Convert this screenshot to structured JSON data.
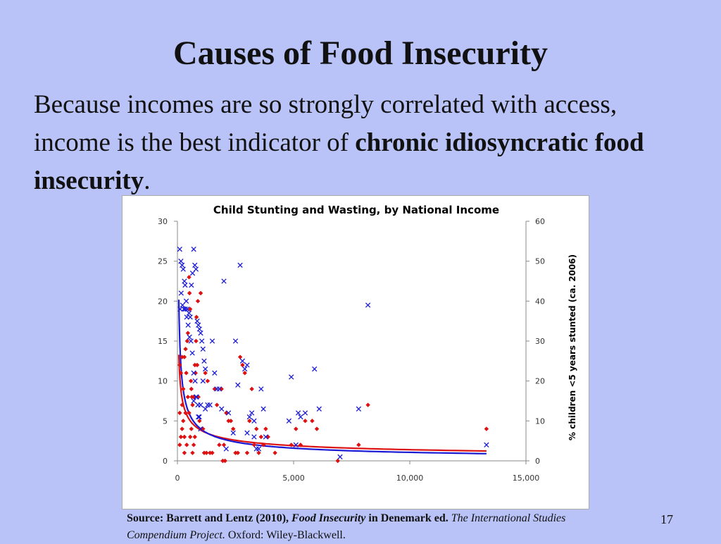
{
  "slide": {
    "title": "Causes of Food Insecurity",
    "body_pre": "Because incomes are so strongly correlated with access, income is the best indicator of ",
    "body_bold": "chronic idiosyncratic food insecurity",
    "body_post": ".",
    "source_prefix": "Source: Barrett and Lentz (2010), ",
    "source_title": "Food Insecurity",
    "source_mid": " in Denemark ed. ",
    "source_book": "The International Studies Compendium Project.",
    "source_suffix": " Oxford: Wiley-Blackwell.",
    "page_number": "17"
  },
  "colors": {
    "background": "#b9c3f7",
    "wasting": "#dd1111",
    "stunting": "#1a1ad6"
  },
  "chart_data": {
    "type": "scatter",
    "title": "Child Stunting and Wasting, by National Income",
    "xlabel": "",
    "ylabel": "",
    "y2label": "% children <5 years stunted (ca. 2006)",
    "xlim": [
      0,
      15000
    ],
    "ylim": [
      0,
      30
    ],
    "y2lim": [
      0,
      60
    ],
    "x_ticks": [
      "0",
      "5,000",
      "10,000",
      "15,000"
    ],
    "y_ticks": [
      "0",
      "5",
      "10",
      "15",
      "20",
      "25",
      "30"
    ],
    "y2_ticks": [
      "0",
      "10",
      "20",
      "30",
      "40",
      "50",
      "60"
    ],
    "grid": false,
    "series": [
      {
        "marker": "diamond",
        "axis": "left",
        "color": "#dd1111",
        "points": [
          [
            100,
            12
          ],
          [
            150,
            11
          ],
          [
            200,
            13
          ],
          [
            250,
            9
          ],
          [
            300,
            13
          ],
          [
            350,
            14
          ],
          [
            380,
            11
          ],
          [
            420,
            15
          ],
          [
            450,
            16
          ],
          [
            500,
            23
          ],
          [
            520,
            21
          ],
          [
            550,
            19
          ],
          [
            580,
            10
          ],
          [
            600,
            9
          ],
          [
            620,
            8
          ],
          [
            650,
            7
          ],
          [
            700,
            8
          ],
          [
            750,
            12
          ],
          [
            780,
            11
          ],
          [
            800,
            15
          ],
          [
            820,
            18
          ],
          [
            850,
            12
          ],
          [
            880,
            20
          ],
          [
            900,
            8
          ],
          [
            950,
            5
          ],
          [
            1000,
            21
          ],
          [
            1050,
            4
          ],
          [
            1100,
            4
          ],
          [
            1150,
            1
          ],
          [
            1200,
            11
          ],
          [
            1250,
            1
          ],
          [
            1300,
            10
          ],
          [
            1400,
            1
          ],
          [
            1500,
            1
          ],
          [
            1600,
            9
          ],
          [
            1700,
            7
          ],
          [
            1800,
            2
          ],
          [
            1900,
            9
          ],
          [
            1950,
            0
          ],
          [
            2000,
            2
          ],
          [
            2050,
            0
          ],
          [
            2100,
            6
          ],
          [
            2200,
            5
          ],
          [
            2300,
            5
          ],
          [
            2400,
            4
          ],
          [
            2500,
            1
          ],
          [
            2600,
            1
          ],
          [
            2700,
            13
          ],
          [
            2800,
            12
          ],
          [
            2900,
            11
          ],
          [
            3000,
            1
          ],
          [
            3100,
            5
          ],
          [
            3200,
            9
          ],
          [
            3300,
            2
          ],
          [
            3400,
            4
          ],
          [
            3500,
            1
          ],
          [
            3600,
            3
          ],
          [
            3700,
            2
          ],
          [
            3800,
            4
          ],
          [
            3900,
            3
          ],
          [
            4200,
            1
          ],
          [
            4900,
            2
          ],
          [
            5100,
            4
          ],
          [
            5300,
            2
          ],
          [
            5500,
            5
          ],
          [
            5800,
            5
          ],
          [
            6000,
            4
          ],
          [
            6900,
            0
          ],
          [
            7800,
            2
          ],
          [
            8200,
            7
          ],
          [
            13300,
            4
          ],
          [
            100,
            6
          ],
          [
            150,
            3
          ],
          [
            200,
            4
          ],
          [
            250,
            5
          ],
          [
            300,
            3
          ],
          [
            350,
            6
          ],
          [
            400,
            2
          ],
          [
            450,
            8
          ],
          [
            500,
            6
          ],
          [
            550,
            3
          ],
          [
            600,
            4
          ],
          [
            650,
            1
          ],
          [
            700,
            2
          ],
          [
            750,
            3
          ],
          [
            100,
            2
          ],
          [
            200,
            7
          ],
          [
            300,
            1
          ]
        ],
        "fit": {
          "type": "power",
          "a": 80.5,
          "b": -0.44,
          "x_from": 60,
          "x_to": 13300
        }
      },
      {
        "marker": "x",
        "axis": "right",
        "color": "#1a1ad6",
        "points": [
          [
            100,
            53
          ],
          [
            150,
            50
          ],
          [
            200,
            49
          ],
          [
            250,
            48
          ],
          [
            300,
            45
          ],
          [
            330,
            44
          ],
          [
            380,
            40
          ],
          [
            420,
            38
          ],
          [
            500,
            37
          ],
          [
            550,
            36
          ],
          [
            600,
            44
          ],
          [
            650,
            47
          ],
          [
            700,
            53
          ],
          [
            750,
            49
          ],
          [
            800,
            48
          ],
          [
            850,
            35
          ],
          [
            900,
            34
          ],
          [
            950,
            33
          ],
          [
            1000,
            32
          ],
          [
            1050,
            30
          ],
          [
            1100,
            28
          ],
          [
            1150,
            25
          ],
          [
            1200,
            23
          ],
          [
            1300,
            14
          ],
          [
            1400,
            14
          ],
          [
            1500,
            30
          ],
          [
            1600,
            22
          ],
          [
            1700,
            18
          ],
          [
            1800,
            18
          ],
          [
            1900,
            13
          ],
          [
            2000,
            45
          ],
          [
            2100,
            3
          ],
          [
            2500,
            30
          ],
          [
            2600,
            19
          ],
          [
            2700,
            49
          ],
          [
            2800,
            25
          ],
          [
            2900,
            23
          ],
          [
            3000,
            24
          ],
          [
            3100,
            11
          ],
          [
            3200,
            12
          ],
          [
            3300,
            10
          ],
          [
            3400,
            3
          ],
          [
            3500,
            3
          ],
          [
            3600,
            18
          ],
          [
            3700,
            13
          ],
          [
            3800,
            6
          ],
          [
            4800,
            10
          ],
          [
            4900,
            21
          ],
          [
            5100,
            4
          ],
          [
            5200,
            12
          ],
          [
            5300,
            11
          ],
          [
            5500,
            12
          ],
          [
            5900,
            23
          ],
          [
            6100,
            13
          ],
          [
            7000,
            1
          ],
          [
            7800,
            13
          ],
          [
            8200,
            39
          ],
          [
            13300,
            4
          ],
          [
            120,
            38
          ],
          [
            160,
            42
          ],
          [
            220,
            39
          ],
          [
            280,
            38
          ],
          [
            340,
            38
          ],
          [
            400,
            36
          ],
          [
            460,
            34
          ],
          [
            520,
            31
          ],
          [
            580,
            30
          ],
          [
            640,
            27
          ],
          [
            700,
            22
          ],
          [
            760,
            20
          ],
          [
            820,
            16
          ],
          [
            880,
            14
          ],
          [
            940,
            11
          ],
          [
            1000,
            8
          ],
          [
            1100,
            20
          ],
          [
            1200,
            13
          ],
          [
            2200,
            12
          ],
          [
            2400,
            7
          ],
          [
            3000,
            7
          ],
          [
            3300,
            6
          ],
          [
            700,
            15
          ],
          [
            800,
            16
          ],
          [
            900,
            11
          ],
          [
            1000,
            14
          ]
        ],
        "fit": {
          "type": "power",
          "a": 425,
          "b": -0.575,
          "x_from": 60,
          "x_to": 13300
        }
      }
    ]
  }
}
